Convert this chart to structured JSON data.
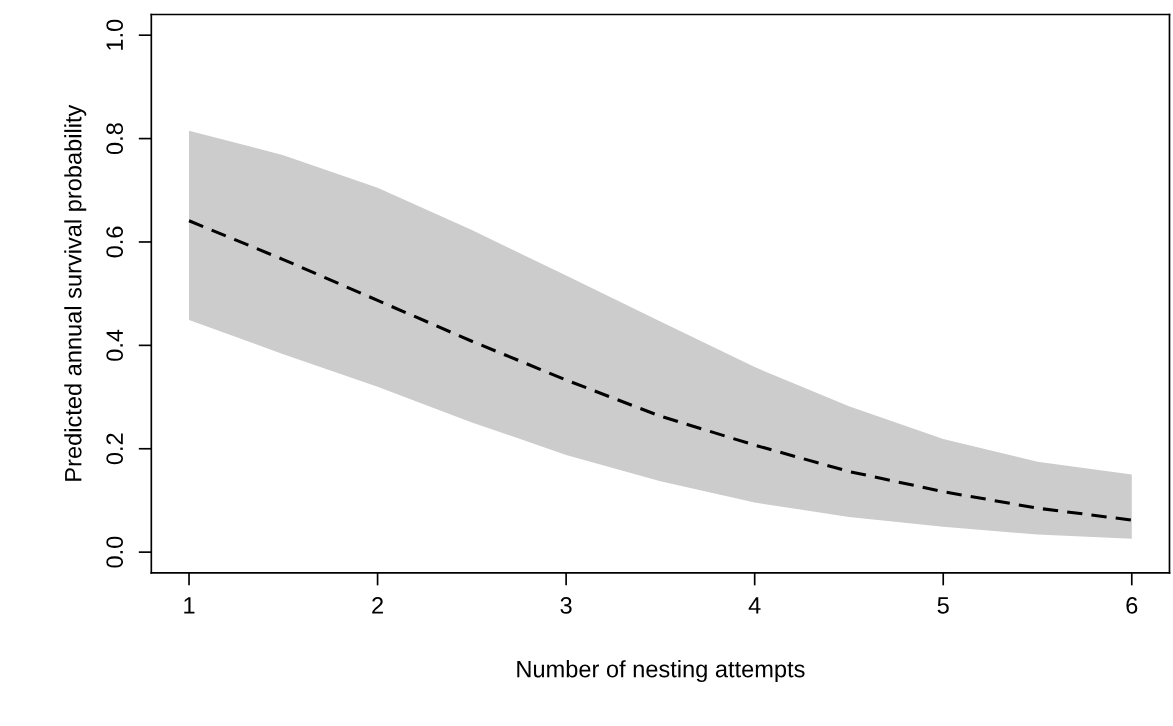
{
  "chart_data": {
    "type": "line",
    "xlabel": "Number of nesting attempts",
    "ylabel": "Predicted annual survival probability",
    "x": [
      1,
      1.5,
      2,
      2.5,
      3,
      3.5,
      4,
      4.5,
      5,
      5.5,
      6
    ],
    "series": [
      {
        "color": "#000000",
        "values": [
          0.641,
          0.566,
          0.487,
          0.408,
          0.333,
          0.263,
          0.207,
          0.156,
          0.117,
          0.085,
          0.062
        ],
        "lower": [
          0.449,
          0.383,
          0.32,
          0.251,
          0.188,
          0.137,
          0.096,
          0.068,
          0.049,
          0.034,
          0.026
        ],
        "upper": [
          0.815,
          0.768,
          0.705,
          0.623,
          0.535,
          0.446,
          0.358,
          0.282,
          0.219,
          0.175,
          0.15
        ]
      }
    ],
    "line_style": "dashed",
    "xlim": [
      0.8,
      6.2
    ],
    "xticks": [
      1,
      2,
      3,
      4,
      5,
      6
    ],
    "ylim": [
      -0.04,
      1.04
    ],
    "yticks": [
      {
        "value": 0,
        "label": "0.0"
      },
      {
        "value": 0.2,
        "label": "0.2"
      },
      {
        "value": 0.4,
        "label": "0.4"
      },
      {
        "value": 0.6,
        "label": "0.6"
      },
      {
        "value": 0.8,
        "label": "0.8"
      },
      {
        "value": 1,
        "label": "1.0"
      }
    ]
  }
}
